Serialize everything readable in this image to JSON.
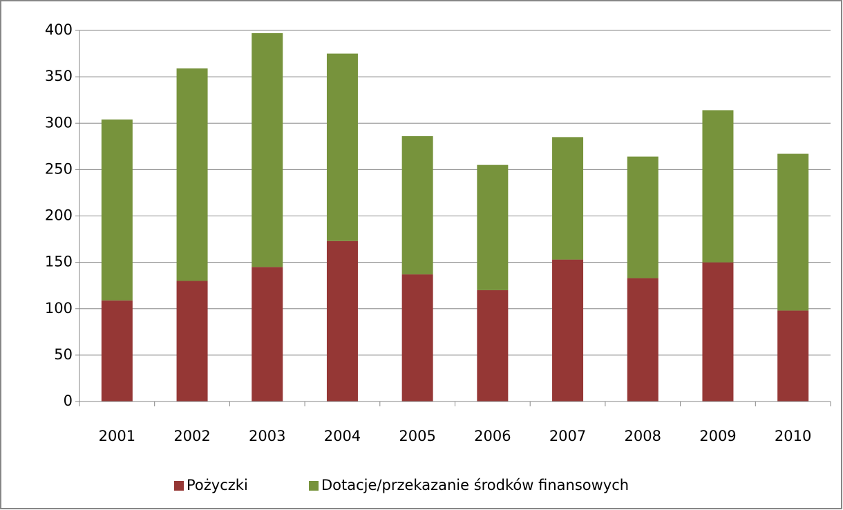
{
  "chart_data": {
    "type": "stacked_bar",
    "categories": [
      "2001",
      "2002",
      "2003",
      "2004",
      "2005",
      "2006",
      "2007",
      "2008",
      "2009",
      "2010"
    ],
    "series": [
      {
        "name": "Pożyczki",
        "color": "#953735",
        "values": [
          109,
          130,
          145,
          173,
          137,
          120,
          153,
          133,
          150,
          98
        ]
      },
      {
        "name": "Dotacje/przekazanie środków finansowych",
        "color": "#77933c",
        "values": [
          195,
          229,
          252,
          202,
          149,
          135,
          132,
          131,
          164,
          169
        ]
      }
    ],
    "ylim": [
      0,
      400
    ],
    "yticks": [
      0,
      50,
      100,
      150,
      200,
      250,
      300,
      350,
      400
    ],
    "grid": true,
    "legend": "bottom"
  }
}
